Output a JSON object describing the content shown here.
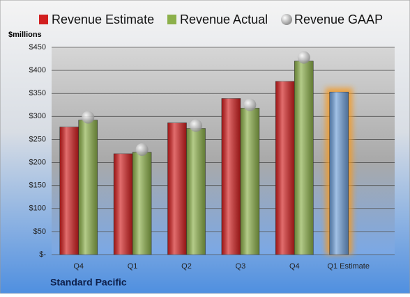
{
  "chart_data": {
    "type": "bar",
    "y_label": "$millions",
    "footnote": "Standard Pacific",
    "categories": [
      "Q4",
      "Q1",
      "Q2",
      "Q3",
      "Q4",
      "Q1 Estimate"
    ],
    "series": [
      {
        "name": "Revenue Estimate",
        "color": "#d21f1f",
        "point_colors": [
          null,
          null,
          null,
          null,
          null,
          "#6f9fd8"
        ],
        "values": [
          277,
          219,
          286,
          339,
          376,
          353
        ]
      },
      {
        "name": "Revenue Actual",
        "color": "#8cb04a",
        "values": [
          292,
          222,
          274,
          318,
          420,
          null
        ]
      },
      {
        "name": "Revenue GAAP",
        "type": "marker",
        "color": "#b8b8b8",
        "values": [
          298,
          228,
          280,
          325,
          428,
          null
        ]
      }
    ],
    "ylim": [
      0,
      450
    ],
    "yticks": [
      {
        "value": 0,
        "label": "$-"
      },
      {
        "value": 50,
        "label": "$50"
      },
      {
        "value": 100,
        "label": "$100"
      },
      {
        "value": 150,
        "label": "$150"
      },
      {
        "value": 200,
        "label": "$200"
      },
      {
        "value": 250,
        "label": "$250"
      },
      {
        "value": 300,
        "label": "$300"
      },
      {
        "value": 350,
        "label": "$350"
      },
      {
        "value": 400,
        "label": "$400"
      },
      {
        "value": 450,
        "label": "$450"
      }
    ],
    "grid": true
  }
}
